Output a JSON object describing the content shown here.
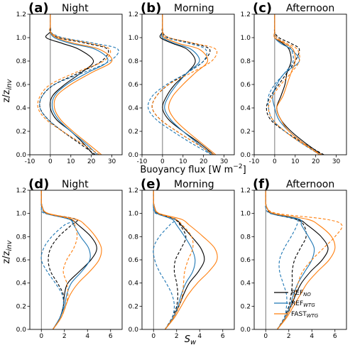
{
  "figure": {
    "ylabel_html": "z/z",
    "ylabel_sub": "inv",
    "row1_xlabel": "Buoyancy flux [W m",
    "row1_xlabel_sup": "−2",
    "row1_xlabel_end": "]",
    "row2_xlabel": "S",
    "row2_xlabel_sub": "w"
  },
  "legend": [
    {
      "name": "REF",
      "sub": "NO",
      "color": "#000000"
    },
    {
      "name": "REF",
      "sub": "WTG",
      "color": "#1f77b4"
    },
    {
      "name": "FAST",
      "sub": "WTG",
      "color": "#ff7f0e"
    }
  ],
  "chart_data": [
    {
      "type": "line",
      "letter": "(a)",
      "title": "Night",
      "xlabel": "Buoyancy flux [W m−2]",
      "ylabel": "z/z_inv",
      "xlim": [
        -10,
        35
      ],
      "ylim": [
        0,
        1.2
      ],
      "xticks": [
        -10,
        0,
        10,
        20,
        30
      ],
      "yticks": [
        0.0,
        0.2,
        0.4,
        0.6,
        0.8,
        1.0,
        1.2
      ],
      "y": [
        0,
        0.1,
        0.2,
        0.3,
        0.4,
        0.5,
        0.6,
        0.7,
        0.8,
        0.9,
        0.95,
        1.0,
        1.05,
        1.1,
        1.2
      ],
      "series": [
        {
          "color": "#000000",
          "dash": false,
          "x": [
            21,
            16,
            10,
            3,
            0,
            1,
            7,
            15,
            21,
            14,
            6,
            -2,
            0,
            0,
            0
          ]
        },
        {
          "color": "#000000",
          "dash": true,
          "x": [
            22,
            14,
            6,
            -1,
            -5,
            -4,
            2,
            14,
            25,
            28,
            18,
            4,
            0,
            0,
            0
          ]
        },
        {
          "color": "#1f77b4",
          "dash": false,
          "x": [
            23,
            17,
            10,
            4,
            1,
            2,
            8,
            18,
            28,
            22,
            10,
            2,
            0,
            0,
            0
          ]
        },
        {
          "color": "#1f77b4",
          "dash": true,
          "x": [
            24,
            15,
            6,
            -1,
            -5,
            -4,
            2,
            16,
            29,
            33,
            22,
            6,
            0,
            0,
            0
          ]
        },
        {
          "color": "#ff7f0e",
          "dash": false,
          "x": [
            25,
            18,
            11,
            5,
            2,
            3,
            10,
            20,
            30,
            24,
            12,
            3,
            0,
            0,
            0
          ]
        },
        {
          "color": "#ff7f0e",
          "dash": true,
          "x": [
            24,
            15,
            6,
            -2,
            -6,
            -5,
            0,
            12,
            26,
            29,
            20,
            5,
            0,
            0,
            0
          ]
        }
      ]
    },
    {
      "type": "line",
      "letter": "(b)",
      "title": "Morning",
      "xlim": [
        -10,
        35
      ],
      "ylim": [
        0,
        1.2
      ],
      "xticks": [
        -10,
        0,
        10,
        20,
        30
      ],
      "yticks": [
        0.0,
        0.2,
        0.4,
        0.6,
        0.8,
        1.0,
        1.2
      ],
      "y": [
        0,
        0.1,
        0.2,
        0.3,
        0.4,
        0.5,
        0.6,
        0.7,
        0.8,
        0.9,
        0.95,
        1.0,
        1.05,
        1.1,
        1.2
      ],
      "series": [
        {
          "color": "#000000",
          "dash": false,
          "x": [
            25,
            18,
            10,
            3,
            0,
            2,
            6,
            12,
            16,
            12,
            5,
            -1,
            0,
            0,
            0
          ]
        },
        {
          "color": "#000000",
          "dash": true,
          "x": [
            25,
            16,
            7,
            -1,
            -5,
            -3,
            3,
            12,
            20,
            23,
            15,
            3,
            0,
            0,
            0
          ]
        },
        {
          "color": "#1f77b4",
          "dash": false,
          "x": [
            24,
            17,
            10,
            4,
            1,
            3,
            7,
            12,
            18,
            14,
            6,
            0,
            0,
            0,
            0
          ]
        },
        {
          "color": "#1f77b4",
          "dash": true,
          "x": [
            24,
            14,
            5,
            -3,
            -7,
            -5,
            2,
            12,
            20,
            21,
            13,
            2,
            0,
            0,
            0
          ]
        },
        {
          "color": "#ff7f0e",
          "dash": false,
          "x": [
            26,
            19,
            12,
            6,
            3,
            5,
            10,
            16,
            22,
            18,
            8,
            1,
            0,
            0,
            0
          ]
        },
        {
          "color": "#ff7f0e",
          "dash": true,
          "x": [
            25,
            16,
            7,
            -1,
            -5,
            -3,
            3,
            14,
            24,
            26,
            16,
            3,
            0,
            0,
            0
          ]
        }
      ]
    },
    {
      "type": "line",
      "letter": "(c)",
      "title": "Afternoon",
      "xlim": [
        -10,
        35
      ],
      "ylim": [
        0,
        1.2
      ],
      "xticks": [
        -10,
        0,
        10,
        20,
        30
      ],
      "yticks": [
        0.0,
        0.2,
        0.4,
        0.6,
        0.8,
        1.0,
        1.2
      ],
      "y": [
        0,
        0.1,
        0.2,
        0.3,
        0.4,
        0.5,
        0.6,
        0.7,
        0.8,
        0.9,
        0.95,
        1.0,
        1.05,
        1.1,
        1.2
      ],
      "series": [
        {
          "color": "#000000",
          "dash": false,
          "x": [
            23,
            15,
            8,
            3,
            1,
            3,
            5,
            6,
            8,
            7,
            4,
            0,
            0,
            0,
            0
          ]
        },
        {
          "color": "#000000",
          "dash": true,
          "x": [
            24,
            14,
            5,
            -2,
            -4,
            -2,
            2,
            6,
            10,
            12,
            8,
            2,
            0,
            0,
            0
          ]
        },
        {
          "color": "#1f77b4",
          "dash": false,
          "x": [
            22,
            14,
            7,
            2,
            0,
            -1,
            1,
            5,
            12,
            8,
            3,
            0,
            0,
            0,
            0
          ]
        },
        {
          "color": "#1f77b4",
          "dash": true,
          "x": [
            22,
            13,
            5,
            -1,
            -3,
            -3,
            0,
            5,
            9,
            8,
            5,
            1,
            0,
            0,
            0
          ]
        },
        {
          "color": "#ff7f0e",
          "dash": false,
          "x": [
            22,
            14,
            7,
            3,
            1,
            4,
            6,
            8,
            10,
            9,
            5,
            0,
            0,
            0,
            0
          ]
        },
        {
          "color": "#ff7f0e",
          "dash": true,
          "x": [
            23,
            13,
            5,
            -1,
            -3,
            -1,
            3,
            8,
            12,
            11,
            6,
            1,
            0,
            0,
            0
          ]
        }
      ]
    },
    {
      "type": "line",
      "letter": "(d)",
      "title": "Night",
      "xlabel": "Sw",
      "ylabel": "z/z_inv",
      "xlim": [
        -1,
        7
      ],
      "ylim": [
        0,
        1.2
      ],
      "xticks": [
        0,
        2,
        4,
        6
      ],
      "yticks": [
        0.0,
        0.2,
        0.4,
        0.6,
        0.8,
        1.0,
        1.2
      ],
      "y": [
        0,
        0.1,
        0.2,
        0.3,
        0.4,
        0.5,
        0.6,
        0.7,
        0.8,
        0.9,
        0.95,
        1.0,
        1.05,
        1.1,
        1.2
      ],
      "series": [
        {
          "color": "#000000",
          "dash": false,
          "x": [
            1.0,
            1.6,
            1.9,
            2.0,
            2.3,
            3.3,
            4.3,
            4.8,
            4.3,
            3.2,
            2.5,
            0.5,
            0.1,
            0.0,
            0.0
          ]
        },
        {
          "color": "#000000",
          "dash": true,
          "x": [
            1.0,
            1.6,
            1.9,
            1.9,
            1.4,
            0.8,
            0.6,
            0.8,
            1.5,
            2.6,
            3.0,
            0.5,
            0.1,
            0.0,
            0.0
          ]
        },
        {
          "color": "#1f77b4",
          "dash": false,
          "x": [
            1.0,
            1.6,
            2.0,
            2.2,
            2.6,
            3.5,
            4.2,
            4.1,
            3.4,
            2.8,
            2.4,
            0.4,
            0.1,
            0.0,
            0.0
          ]
        },
        {
          "color": "#1f77b4",
          "dash": true,
          "x": [
            1.0,
            1.6,
            1.9,
            1.8,
            1.2,
            0.5,
            0.0,
            0.2,
            0.9,
            2.0,
            2.9,
            0.3,
            0.0,
            0.0,
            0.0
          ]
        },
        {
          "color": "#ff7f0e",
          "dash": false,
          "x": [
            1.0,
            1.7,
            2.1,
            2.5,
            3.2,
            4.2,
            5.0,
            5.2,
            4.7,
            3.8,
            3.0,
            0.6,
            0.1,
            0.0,
            0.0
          ]
        },
        {
          "color": "#ff7f0e",
          "dash": true,
          "x": [
            1.0,
            1.7,
            2.1,
            2.3,
            2.2,
            1.9,
            2.2,
            2.8,
            3.1,
            2.9,
            2.6,
            0.5,
            0.1,
            0.0,
            0.0
          ]
        }
      ]
    },
    {
      "type": "line",
      "letter": "(e)",
      "title": "Morning",
      "xlim": [
        -1,
        7
      ],
      "ylim": [
        0,
        1.2
      ],
      "xticks": [
        0,
        2,
        4,
        6
      ],
      "yticks": [
        0.0,
        0.2,
        0.4,
        0.6,
        0.8,
        1.0,
        1.2
      ],
      "y": [
        0,
        0.1,
        0.2,
        0.3,
        0.4,
        0.5,
        0.6,
        0.7,
        0.8,
        0.9,
        0.95,
        1.0,
        1.05,
        1.1,
        1.2
      ],
      "series": [
        {
          "color": "#000000",
          "dash": false,
          "x": [
            1.0,
            1.7,
            2.2,
            2.6,
            3.1,
            3.9,
            4.4,
            4.1,
            3.3,
            2.4,
            1.9,
            0.4,
            0.1,
            0.0,
            0.0
          ]
        },
        {
          "color": "#000000",
          "dash": true,
          "x": [
            1.0,
            1.6,
            2.0,
            2.1,
            2.0,
            1.8,
            1.9,
            2.4,
            2.8,
            2.3,
            1.8,
            0.3,
            0.0,
            0.0,
            0.0
          ]
        },
        {
          "color": "#1f77b4",
          "dash": false,
          "x": [
            1.0,
            1.7,
            2.1,
            2.4,
            2.8,
            3.4,
            3.6,
            3.3,
            2.7,
            2.0,
            1.6,
            0.3,
            0.0,
            0.0,
            0.0
          ]
        },
        {
          "color": "#1f77b4",
          "dash": true,
          "x": [
            1.0,
            1.6,
            1.8,
            1.6,
            1.1,
            0.5,
            0.1,
            0.0,
            0.5,
            1.4,
            1.8,
            0.2,
            0.0,
            0.0,
            0.0
          ]
        },
        {
          "color": "#ff7f0e",
          "dash": false,
          "x": [
            1.0,
            1.8,
            2.4,
            3.0,
            3.8,
            4.8,
            5.5,
            5.3,
            4.3,
            3.1,
            2.4,
            0.5,
            0.1,
            0.0,
            0.0
          ]
        },
        {
          "color": "#ff7f0e",
          "dash": true,
          "x": [
            1.0,
            1.7,
            2.2,
            2.5,
            2.6,
            2.7,
            3.0,
            3.4,
            3.3,
            2.5,
            1.9,
            0.4,
            0.1,
            0.0,
            0.0
          ]
        }
      ]
    },
    {
      "type": "line",
      "letter": "(f)",
      "title": "Afternoon",
      "xlim": [
        -1,
        7
      ],
      "ylim": [
        0,
        1.2
      ],
      "xticks": [
        0,
        2,
        4,
        6
      ],
      "yticks": [
        0.0,
        0.2,
        0.4,
        0.6,
        0.8,
        1.0,
        1.2
      ],
      "y": [
        0,
        0.1,
        0.2,
        0.3,
        0.4,
        0.5,
        0.6,
        0.7,
        0.8,
        0.9,
        0.95,
        1.0,
        1.05,
        1.1,
        1.2
      ],
      "series": [
        {
          "color": "#000000",
          "dash": false,
          "x": [
            1.0,
            1.7,
            2.2,
            2.6,
            3.1,
            3.9,
            4.9,
            5.4,
            4.8,
            3.6,
            2.8,
            0.6,
            0.1,
            0.0,
            0.0
          ]
        },
        {
          "color": "#000000",
          "dash": true,
          "x": [
            1.0,
            1.6,
            2.0,
            2.2,
            2.3,
            2.3,
            2.5,
            3.0,
            3.5,
            3.3,
            2.6,
            0.5,
            0.1,
            0.0,
            0.0
          ]
        },
        {
          "color": "#1f77b4",
          "dash": false,
          "x": [
            1.0,
            1.7,
            2.1,
            2.4,
            2.8,
            3.4,
            4.0,
            4.2,
            3.7,
            3.1,
            2.9,
            0.6,
            0.1,
            0.0,
            0.0
          ]
        },
        {
          "color": "#1f77b4",
          "dash": true,
          "x": [
            1.0,
            1.6,
            1.8,
            1.8,
            1.5,
            1.2,
            1.2,
            1.6,
            2.2,
            2.7,
            2.6,
            0.4,
            0.0,
            0.0,
            0.0
          ]
        },
        {
          "color": "#ff7f0e",
          "dash": false,
          "x": [
            1.0,
            1.8,
            2.4,
            3.0,
            3.6,
            4.5,
            5.5,
            6.0,
            5.7,
            4.6,
            3.6,
            0.7,
            0.1,
            0.0,
            0.0
          ]
        },
        {
          "color": "#ff7f0e",
          "dash": true,
          "x": [
            1.0,
            1.7,
            2.2,
            2.5,
            2.8,
            3.2,
            4.0,
            5.0,
            6.0,
            6.6,
            5.2,
            1.0,
            0.1,
            0.0,
            0.0
          ]
        }
      ]
    }
  ]
}
